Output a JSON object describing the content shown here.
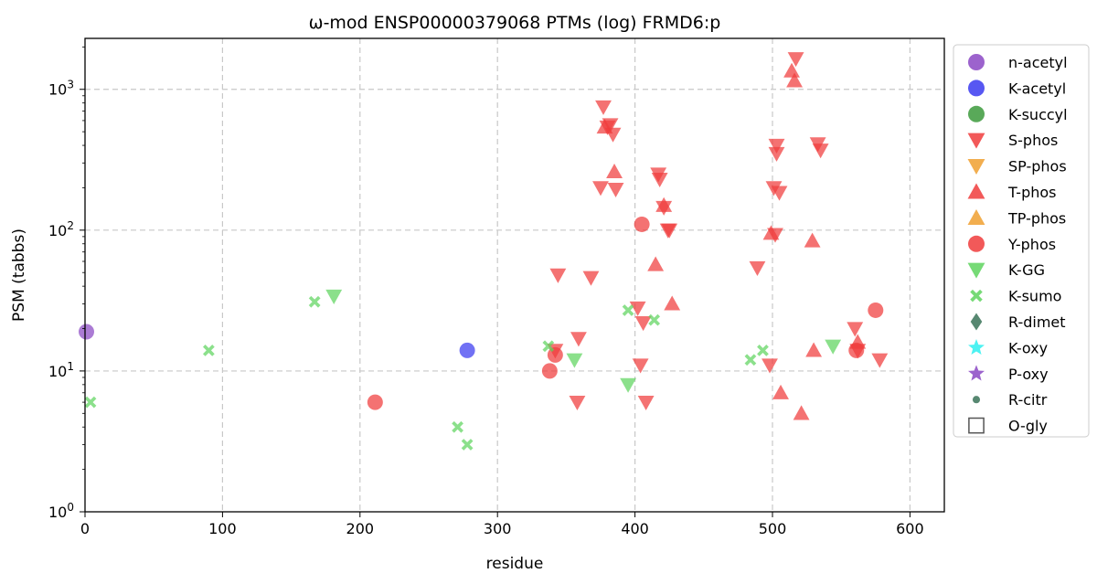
{
  "chart_data": {
    "type": "scatter",
    "title": "ω-mod ENSP00000379068 PTMs (log) FRMD6:p",
    "xlabel": "residue",
    "ylabel": "PSM (tabbs)",
    "xlim": [
      0,
      625
    ],
    "ylim": [
      1,
      2300
    ],
    "y_scale": "log",
    "grid": true,
    "legend_position": "outside-right",
    "x_ticks": [
      "0",
      "100",
      "200",
      "300",
      "400",
      "500",
      "600"
    ],
    "y_ticks": [
      "10^0",
      "10^1",
      "10^2",
      "10^3"
    ],
    "series": [
      {
        "name": "n-acetyl",
        "marker": "circle",
        "color": "#8B48C4",
        "points": [
          [
            1,
            19
          ]
        ]
      },
      {
        "name": "K-acetyl",
        "marker": "circle",
        "color": "#3A3AF0",
        "points": [
          [
            278,
            14
          ]
        ]
      },
      {
        "name": "K-succyl",
        "marker": "circle",
        "color": "#3C9A3C",
        "points": []
      },
      {
        "name": "S-phos",
        "marker": "triangle-down",
        "color": "#F03C3C",
        "points": [
          [
            344,
            48
          ],
          [
            358,
            6
          ],
          [
            359,
            17
          ],
          [
            342,
            14
          ],
          [
            368,
            46
          ],
          [
            375,
            200
          ],
          [
            377,
            750
          ],
          [
            380,
            540
          ],
          [
            382,
            560
          ],
          [
            384,
            480
          ],
          [
            386,
            195
          ],
          [
            402,
            28
          ],
          [
            404,
            11
          ],
          [
            406,
            22
          ],
          [
            408,
            6
          ],
          [
            417,
            250
          ],
          [
            418,
            230
          ],
          [
            421,
            145
          ],
          [
            424,
            100
          ],
          [
            425,
            100
          ],
          [
            489,
            54
          ],
          [
            498,
            11
          ],
          [
            501,
            200
          ],
          [
            502,
            93
          ],
          [
            503,
            400
          ],
          [
            503,
            350
          ],
          [
            505,
            185
          ],
          [
            517,
            1650
          ],
          [
            533,
            410
          ],
          [
            535,
            370
          ],
          [
            560,
            20
          ],
          [
            562,
            14
          ],
          [
            578,
            12
          ]
        ]
      },
      {
        "name": "SP-phos",
        "marker": "triangle-down",
        "color": "#F0A030",
        "points": []
      },
      {
        "name": "T-phos",
        "marker": "triangle-up",
        "color": "#F03C3C",
        "points": [
          [
            378,
            540
          ],
          [
            385,
            260
          ],
          [
            415,
            57
          ],
          [
            421,
            150
          ],
          [
            427,
            30
          ],
          [
            499,
            95
          ],
          [
            506,
            7
          ],
          [
            514,
            1350
          ],
          [
            516,
            1150
          ],
          [
            521,
            5
          ],
          [
            529,
            84
          ],
          [
            530,
            14
          ],
          [
            562,
            16
          ]
        ]
      },
      {
        "name": "TP-phos",
        "marker": "triangle-up",
        "color": "#F0A030",
        "points": []
      },
      {
        "name": "Y-phos",
        "marker": "circle",
        "color": "#F03C3C",
        "points": [
          [
            211,
            6
          ],
          [
            338,
            10
          ],
          [
            342,
            13
          ],
          [
            405,
            110
          ],
          [
            561,
            14
          ],
          [
            575,
            27
          ]
        ]
      },
      {
        "name": "K-GG",
        "marker": "triangle-down",
        "color": "#5ED45E",
        "points": [
          [
            181,
            34
          ],
          [
            356,
            12
          ],
          [
            395,
            8
          ],
          [
            544,
            15
          ]
        ]
      },
      {
        "name": "K-sumo",
        "marker": "x",
        "color": "#5ED45E",
        "points": [
          [
            4,
            6
          ],
          [
            90,
            14
          ],
          [
            167,
            31
          ],
          [
            271,
            4
          ],
          [
            278,
            3
          ],
          [
            337,
            15
          ],
          [
            395,
            27
          ],
          [
            414,
            23
          ],
          [
            484,
            12
          ],
          [
            493,
            14
          ]
        ]
      },
      {
        "name": "R-dimet",
        "marker": "diamond",
        "color": "#3A7358",
        "points": []
      },
      {
        "name": "K-oxy",
        "marker": "star",
        "color": "#2EF0F0",
        "points": []
      },
      {
        "name": "P-oxy",
        "marker": "star",
        "color": "#8B48C4",
        "points": []
      },
      {
        "name": "R-citr",
        "marker": "small-circle",
        "color": "#3A7358",
        "points": []
      },
      {
        "name": "O-gly",
        "marker": "square-open",
        "color": "#555555",
        "points": []
      }
    ]
  }
}
